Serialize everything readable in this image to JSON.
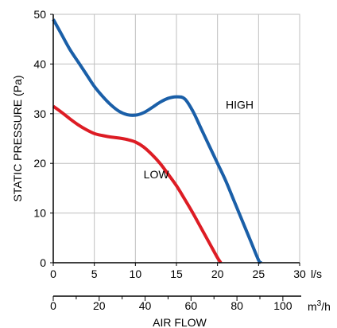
{
  "chart_data": {
    "type": "line",
    "ylabel": "STATIC PRESSURE (Pa)",
    "xlabel": "AIR FLOW",
    "primary_x": {
      "unit": "l/s",
      "range": [
        0,
        30
      ],
      "ticks": [
        0,
        5,
        10,
        15,
        20,
        25,
        30
      ],
      "tick_labels": [
        "0",
        "5",
        "10",
        "15",
        "20",
        "25",
        "30"
      ]
    },
    "secondary_x": {
      "unit": "m³/h",
      "unit_base": "m",
      "unit_sup": "3",
      "unit_suffix": "/h",
      "range": [
        0,
        108
      ],
      "ticks": [
        0,
        20,
        40,
        60,
        80,
        100
      ],
      "tick_labels": [
        "0",
        "20",
        "40",
        "60",
        "80",
        "100"
      ]
    },
    "y": {
      "range": [
        0,
        50
      ],
      "ticks": [
        0,
        10,
        20,
        30,
        40,
        50
      ],
      "tick_labels": [
        "0",
        "10",
        "20",
        "30",
        "40",
        "50"
      ]
    },
    "grid": true,
    "series": [
      {
        "name": "HIGH",
        "color": "#1a5fa8",
        "label_at": [
          21,
          31
        ],
        "points": [
          [
            0,
            49
          ],
          [
            1,
            46
          ],
          [
            2,
            43
          ],
          [
            3,
            40.5
          ],
          [
            4,
            38
          ],
          [
            5,
            35.5
          ],
          [
            6,
            33.5
          ],
          [
            7,
            31.8
          ],
          [
            8,
            30.5
          ],
          [
            9,
            29.8
          ],
          [
            10,
            29.7
          ],
          [
            11,
            30.2
          ],
          [
            12,
            31.2
          ],
          [
            13,
            32.3
          ],
          [
            14,
            33.1
          ],
          [
            15,
            33.4
          ],
          [
            16,
            33
          ],
          [
            17,
            30.5
          ],
          [
            18,
            27
          ],
          [
            19,
            23.5
          ],
          [
            20,
            20
          ],
          [
            21,
            16.5
          ],
          [
            22,
            12.5
          ],
          [
            23,
            8.5
          ],
          [
            24,
            4.5
          ],
          [
            25,
            0.5
          ],
          [
            25.3,
            0
          ]
        ]
      },
      {
        "name": "LOW",
        "color": "#dd1c24",
        "label_at": [
          11,
          17
        ],
        "points": [
          [
            0,
            31.5
          ],
          [
            1,
            30.3
          ],
          [
            2,
            29
          ],
          [
            3,
            27.8
          ],
          [
            4,
            26.8
          ],
          [
            5,
            26
          ],
          [
            6,
            25.6
          ],
          [
            7,
            25.3
          ],
          [
            8,
            25.1
          ],
          [
            9,
            24.8
          ],
          [
            10,
            24.3
          ],
          [
            11,
            23.3
          ],
          [
            12,
            21.8
          ],
          [
            13,
            20
          ],
          [
            14,
            17.8
          ],
          [
            15,
            15.5
          ],
          [
            16,
            12.8
          ],
          [
            17,
            10
          ],
          [
            18,
            7
          ],
          [
            19,
            4
          ],
          [
            20,
            1
          ],
          [
            20.4,
            0
          ]
        ]
      }
    ]
  },
  "colors": {
    "grid": "#bfbfbf",
    "axis": "#000000"
  }
}
